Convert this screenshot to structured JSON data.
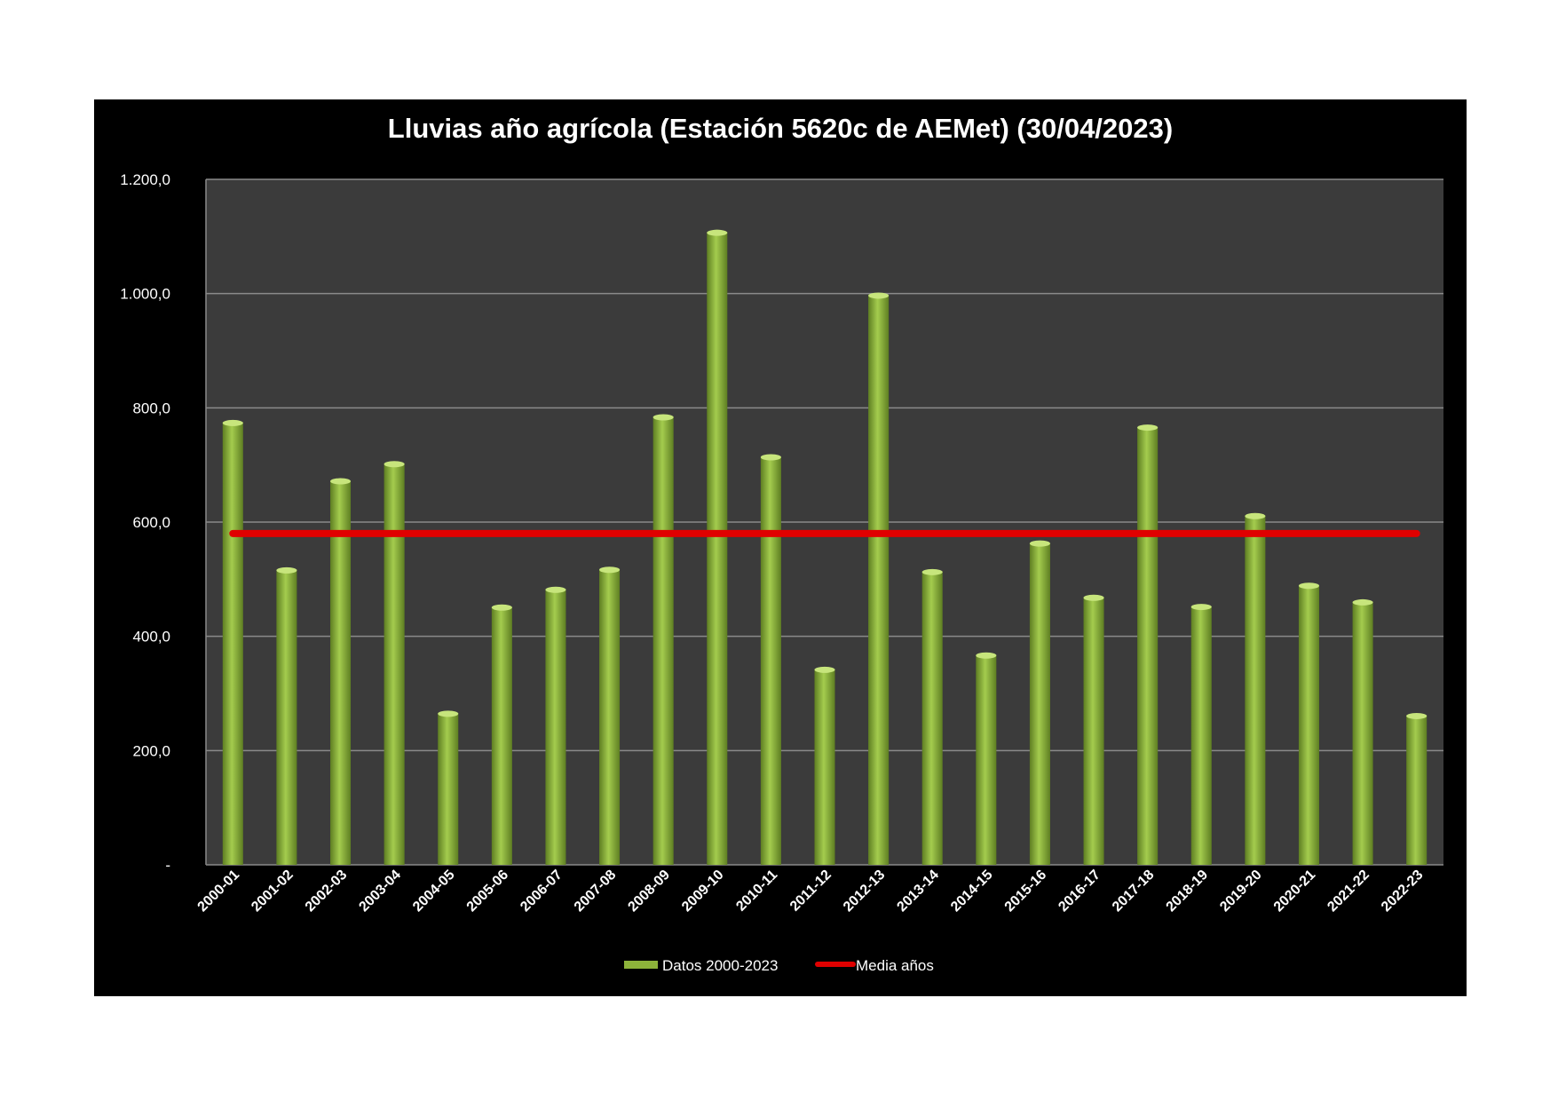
{
  "chart_data": {
    "type": "bar",
    "title": "Lluvias año agrícola (Estación 5620c de AEMet) (30/04/2023)",
    "xlabel": "",
    "ylabel": "",
    "ylim": [
      0,
      1200
    ],
    "yticks": [
      "-",
      "200,0",
      "400,0",
      "600,0",
      "800,0",
      "1.000,0",
      "1.200,0"
    ],
    "ytick_values": [
      0,
      200,
      400,
      600,
      800,
      1000,
      1200
    ],
    "grid": true,
    "legend_position": "bottom",
    "categories": [
      "2000-01",
      "2001-02",
      "2002-03",
      "2003-04",
      "2004-05",
      "2005-06",
      "2006-07",
      "2007-08",
      "2008-09",
      "2009-10",
      "2010-11",
      "2011-12",
      "2012-13",
      "2013-14",
      "2014-15",
      "2015-16",
      "2016-17",
      "2017-18",
      "2018-19",
      "2019-20",
      "2020-21",
      "2021-22",
      "2022-23"
    ],
    "series": [
      {
        "name": "Datos 2000-2023",
        "type": "bar",
        "color": "#8db33a",
        "values": [
          775,
          517,
          673,
          703,
          266,
          452,
          483,
          518,
          785,
          1108,
          715,
          343,
          998,
          514,
          368,
          564,
          469,
          767,
          453,
          612,
          490,
          461,
          262
        ]
      },
      {
        "name": "Media años",
        "type": "line",
        "color": "#e00000",
        "values": [
          580,
          580,
          580,
          580,
          580,
          580,
          580,
          580,
          580,
          580,
          580,
          580,
          580,
          580,
          580,
          580,
          580,
          580,
          580,
          580,
          580,
          580,
          580
        ]
      }
    ]
  },
  "colors": {
    "panel_background": "#000000",
    "plot_background": "#3b3b3b",
    "gridline": "#8a8a8a",
    "bar": "#8db33a",
    "mean_line": "#e00000",
    "text": "#ffffff"
  }
}
